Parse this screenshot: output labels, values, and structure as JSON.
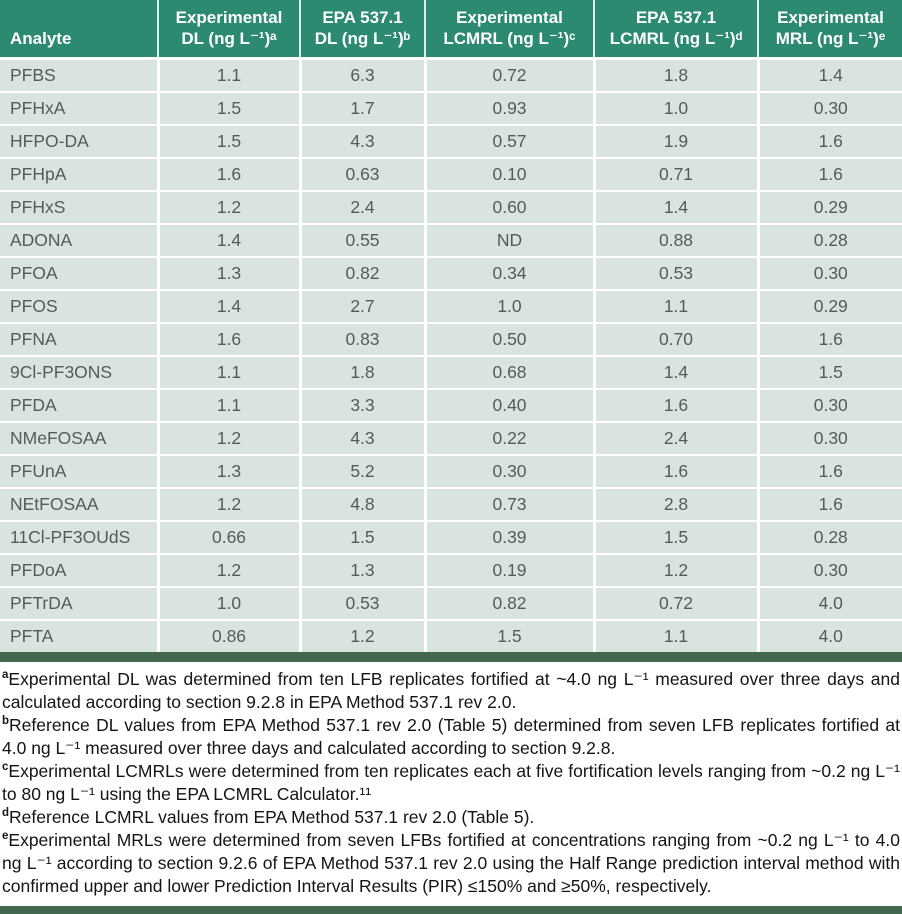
{
  "table": {
    "columns": [
      {
        "id": "analyte",
        "line1": "Analyte",
        "line2": ""
      },
      {
        "id": "exp-dl",
        "line1": "Experimental",
        "line2": "DL (ng L⁻¹)ᵃ"
      },
      {
        "id": "epa-dl",
        "line1": "EPA 537.1",
        "line2": "DL (ng L⁻¹)ᵇ"
      },
      {
        "id": "exp-lcmrl",
        "line1": "Experimental",
        "line2": "LCMRL (ng L⁻¹)ᶜ"
      },
      {
        "id": "epa-lcmrl",
        "line1": "EPA 537.1",
        "line2": "LCMRL (ng L⁻¹)ᵈ"
      },
      {
        "id": "exp-mrl",
        "line1": "Experimental",
        "line2": "MRL (ng L⁻¹)ᵉ"
      }
    ],
    "rows": [
      [
        "PFBS",
        "1.1",
        "6.3",
        "0.72",
        "1.8",
        "1.4"
      ],
      [
        "PFHxA",
        "1.5",
        "1.7",
        "0.93",
        "1.0",
        "0.30"
      ],
      [
        "HFPO-DA",
        "1.5",
        "4.3",
        "0.57",
        "1.9",
        "1.6"
      ],
      [
        "PFHpA",
        "1.6",
        "0.63",
        "0.10",
        "0.71",
        "1.6"
      ],
      [
        "PFHxS",
        "1.2",
        "2.4",
        "0.60",
        "1.4",
        "0.29"
      ],
      [
        "ADONA",
        "1.4",
        "0.55",
        "ND",
        "0.88",
        "0.28"
      ],
      [
        "PFOA",
        "1.3",
        "0.82",
        "0.34",
        "0.53",
        "0.30"
      ],
      [
        "PFOS",
        "1.4",
        "2.7",
        "1.0",
        "1.1",
        "0.29"
      ],
      [
        "PFNA",
        "1.6",
        "0.83",
        "0.50",
        "0.70",
        "1.6"
      ],
      [
        "9Cl-PF3ONS",
        "1.1",
        "1.8",
        "0.68",
        "1.4",
        "1.5"
      ],
      [
        "PFDA",
        "1.1",
        "3.3",
        "0.40",
        "1.6",
        "0.30"
      ],
      [
        "NMeFOSAA",
        "1.2",
        "4.3",
        "0.22",
        "2.4",
        "0.30"
      ],
      [
        "PFUnA",
        "1.3",
        "5.2",
        "0.30",
        "1.6",
        "1.6"
      ],
      [
        "NEtFOSAA",
        "1.2",
        "4.8",
        "0.73",
        "2.8",
        "1.6"
      ],
      [
        "11Cl-PF3OUdS",
        "0.66",
        "1.5",
        "0.39",
        "1.5",
        "0.28"
      ],
      [
        "PFDoA",
        "1.2",
        "1.3",
        "0.19",
        "1.2",
        "0.30"
      ],
      [
        "PFTrDA",
        "1.0",
        "0.53",
        "0.82",
        "0.72",
        "4.0"
      ],
      [
        "PFTA",
        "0.86",
        "1.2",
        "1.5",
        "1.1",
        "4.0"
      ]
    ]
  },
  "footnotes": [
    {
      "marker": "a",
      "text": "Experimental DL was determined from ten LFB replicates fortified at ~4.0 ng L⁻¹ measured over three days and calculated according to section 9.2.8 in EPA Method 537.1 rev 2.0."
    },
    {
      "marker": "b",
      "text": "Reference DL values from EPA Method 537.1 rev 2.0 (Table 5) determined from seven LFB replicates fortified at 4.0 ng L⁻¹ measured over three days and calculated according to section 9.2.8."
    },
    {
      "marker": "c",
      "text": "Experimental LCMRLs were determined from ten replicates each at five fortification levels ranging from ~0.2 ng L⁻¹ to 80 ng L⁻¹ using the EPA LCMRL Calculator.¹¹"
    },
    {
      "marker": "d",
      "text": "Reference LCMRL values from EPA Method 537.1 rev 2.0 (Table 5)."
    },
    {
      "marker": "e",
      "text": "Experimental MRLs were determined from seven LFBs fortified at concentrations ranging from ~0.2 ng L⁻¹ to 4.0 ng L⁻¹ according to section 9.2.6 of EPA Method 537.1 rev 2.0 using the Half Range prediction interval method with confirmed upper and lower Prediction Interval Results (PIR) ≤150% and ≥50%, respectively."
    }
  ],
  "colors": {
    "header_bg": "#2b8a71",
    "cell_bg": "#d9e4de",
    "cell_text": "#555b57",
    "grid_line": "#ffffff",
    "divider_bar": "#44684e",
    "footnote_text": "#141414"
  }
}
